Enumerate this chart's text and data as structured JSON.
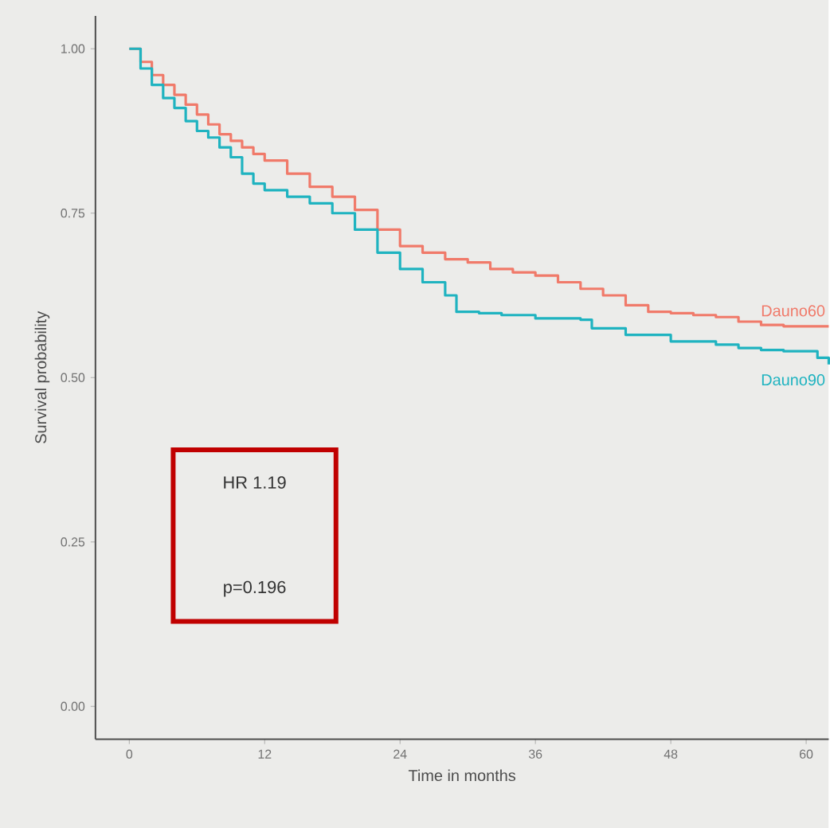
{
  "chart_data": {
    "type": "step",
    "xlabel": "Time in months",
    "ylabel": "Survival probability",
    "xlim": [
      -3,
      62
    ],
    "ylim": [
      -0.05,
      1.05
    ],
    "xticks": [
      0,
      12,
      24,
      36,
      48,
      60
    ],
    "yticks": [
      {
        "value": 0,
        "label": "0.00"
      },
      {
        "value": 0.25,
        "label": "0.25"
      },
      {
        "value": 0.5,
        "label": "0.50"
      },
      {
        "value": 0.75,
        "label": "0.75"
      },
      {
        "value": 1,
        "label": "1.00"
      }
    ],
    "grid": false,
    "legend": false,
    "annotations": [
      "HR 1.19",
      "p=0.196"
    ],
    "series": [
      {
        "name": "Dauno60",
        "color": "#f07a6a",
        "x": [
          0,
          1,
          2,
          3,
          4,
          5,
          6,
          7,
          8,
          9,
          10,
          11,
          12,
          14,
          16,
          18,
          20,
          22,
          24,
          26,
          28,
          30,
          32,
          34,
          36,
          38,
          40,
          42,
          44,
          46,
          48,
          50,
          52,
          54,
          56,
          58,
          62
        ],
        "values": [
          1.0,
          0.98,
          0.96,
          0.945,
          0.93,
          0.915,
          0.9,
          0.885,
          0.87,
          0.86,
          0.85,
          0.84,
          0.83,
          0.81,
          0.79,
          0.775,
          0.755,
          0.725,
          0.7,
          0.69,
          0.68,
          0.675,
          0.665,
          0.66,
          0.655,
          0.645,
          0.635,
          0.625,
          0.61,
          0.6,
          0.598,
          0.595,
          0.592,
          0.585,
          0.58,
          0.578,
          0.578
        ]
      },
      {
        "name": "Dauno90",
        "color": "#1fb3c0",
        "x": [
          0,
          1,
          2,
          3,
          4,
          5,
          6,
          7,
          8,
          9,
          10,
          11,
          12,
          14,
          16,
          18,
          20,
          22,
          24,
          26,
          28,
          29,
          31,
          33,
          36,
          40,
          41,
          44,
          48,
          52,
          54,
          56,
          58,
          61,
          62
        ],
        "values": [
          1.0,
          0.97,
          0.945,
          0.925,
          0.91,
          0.89,
          0.875,
          0.865,
          0.85,
          0.835,
          0.81,
          0.795,
          0.785,
          0.775,
          0.765,
          0.75,
          0.725,
          0.69,
          0.665,
          0.645,
          0.625,
          0.6,
          0.598,
          0.595,
          0.59,
          0.588,
          0.575,
          0.565,
          0.555,
          0.55,
          0.545,
          0.542,
          0.54,
          0.53,
          0.52
        ]
      }
    ]
  }
}
